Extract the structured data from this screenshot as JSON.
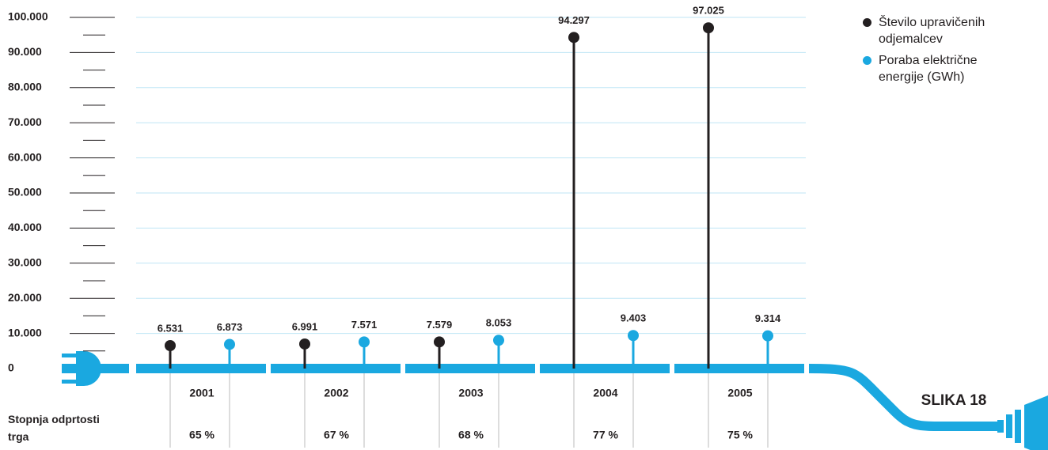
{
  "chart_data": {
    "type": "lollipop",
    "categories": [
      "2001",
      "2002",
      "2003",
      "2004",
      "2005"
    ],
    "series": [
      {
        "name": "Število upravičenih odjemalcev",
        "color": "#231f20",
        "values": [
          6531,
          6991,
          7579,
          94297,
          97025
        ],
        "value_labels": [
          "6.531",
          "6.991",
          "7.579",
          "94.297",
          "97.025"
        ]
      },
      {
        "name": "Poraba električne energije (GWh)",
        "color": "#1aa8e0",
        "values": [
          6873,
          7571,
          8053,
          9403,
          9314
        ],
        "value_labels": [
          "6.873",
          "7.571",
          "8.053",
          "9.403",
          "9.314"
        ]
      }
    ],
    "ylim": [
      0,
      100000
    ],
    "yticks": [
      0,
      {
        "value": 10000,
        "label": "10.000"
      },
      {
        "value": 20000,
        "label": "20.000"
      },
      {
        "value": 30000,
        "label": "30.000"
      },
      {
        "value": 40000,
        "label": "40.000"
      },
      {
        "value": 50000,
        "label": "50.000"
      },
      {
        "value": 60000,
        "label": "60.000"
      },
      {
        "value": 70000,
        "label": "70.000"
      },
      {
        "value": 80000,
        "label": "80.000"
      },
      {
        "value": 90000,
        "label": "90.000"
      },
      {
        "value": 100000,
        "label": "100.000"
      }
    ],
    "grid": true,
    "openness_title": "Stopnja odprtosti trga",
    "openness_labels": [
      "65 %",
      "67 %",
      "68 %",
      "77 %",
      "75 %"
    ],
    "figure_label": "SLIKA 18"
  }
}
